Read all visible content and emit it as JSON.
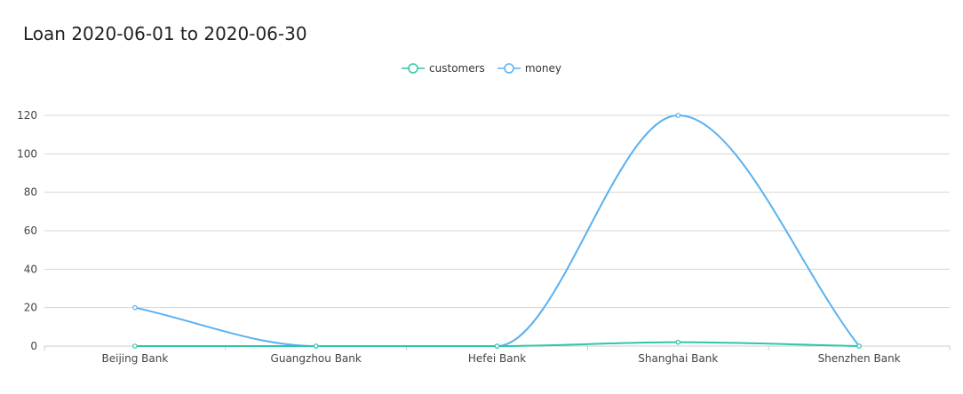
{
  "chart_data": {
    "type": "line",
    "title": "Loan 2020-06-01 to 2020-06-30",
    "categories": [
      "Beijing Bank",
      "Guangzhou Bank",
      "Hefei Bank",
      "Shanghai Bank",
      "Shenzhen Bank"
    ],
    "series": [
      {
        "name": "customers",
        "values": [
          0,
          0,
          0,
          2,
          0
        ],
        "color": "#2ec7a6"
      },
      {
        "name": "money",
        "values": [
          20,
          0,
          0,
          120,
          0
        ],
        "color": "#5ab1ef"
      }
    ],
    "ylim": [
      0,
      120
    ],
    "yticks": [
      0,
      20,
      40,
      60,
      80,
      100,
      120
    ],
    "grid": true,
    "smooth": true,
    "legend_position": "top-center"
  }
}
